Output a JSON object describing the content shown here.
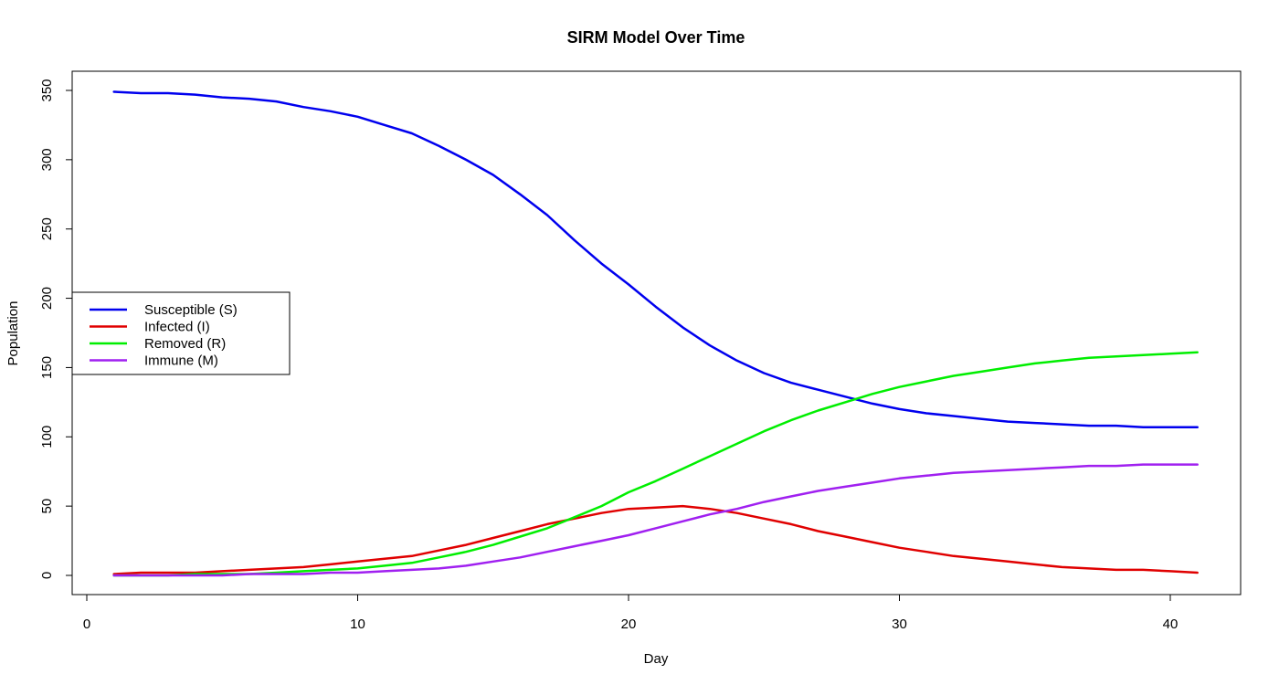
{
  "chart_data": {
    "type": "line",
    "title": "SIRM Model Over Time",
    "xlabel": "Day",
    "ylabel": "Population",
    "xlim": [
      0,
      42
    ],
    "ylim": [
      0,
      355
    ],
    "x_ticks": [
      0,
      10,
      20,
      30,
      40
    ],
    "y_ticks": [
      0,
      50,
      100,
      150,
      200,
      250,
      300,
      350
    ],
    "grid": false,
    "legend_position": "left",
    "x": [
      1,
      2,
      3,
      4,
      5,
      6,
      7,
      8,
      9,
      10,
      11,
      12,
      13,
      14,
      15,
      16,
      17,
      18,
      19,
      20,
      21,
      22,
      23,
      24,
      25,
      26,
      27,
      28,
      29,
      30,
      31,
      32,
      33,
      34,
      35,
      36,
      37,
      38,
      39,
      40,
      41
    ],
    "series": [
      {
        "name": "Susceptible (S)",
        "color": "#0000ee",
        "values": [
          349,
          348,
          348,
          347,
          345,
          344,
          342,
          338,
          335,
          331,
          325,
          319,
          310,
          300,
          289,
          275,
          260,
          242,
          225,
          210,
          194,
          179,
          166,
          155,
          146,
          139,
          134,
          129,
          124,
          120,
          117,
          115,
          113,
          111,
          110,
          109,
          108,
          108,
          107,
          107,
          107
        ]
      },
      {
        "name": "Infected (I)",
        "color": "#e00000",
        "values": [
          1,
          2,
          2,
          2,
          3,
          4,
          5,
          6,
          8,
          10,
          12,
          14,
          18,
          22,
          27,
          32,
          37,
          41,
          45,
          48,
          49,
          50,
          48,
          45,
          41,
          37,
          32,
          28,
          24,
          20,
          17,
          14,
          12,
          10,
          8,
          6,
          5,
          4,
          4,
          3,
          2
        ]
      },
      {
        "name": "Removed (R)",
        "color": "#00ee00",
        "values": [
          0,
          0,
          0,
          1,
          1,
          1,
          2,
          3,
          4,
          5,
          7,
          9,
          13,
          17,
          22,
          28,
          34,
          42,
          50,
          60,
          68,
          77,
          86,
          95,
          104,
          112,
          119,
          125,
          131,
          136,
          140,
          144,
          147,
          150,
          153,
          155,
          157,
          158,
          159,
          160,
          161
        ]
      },
      {
        "name": "Immune (M)",
        "color": "#a020f0",
        "values": [
          0,
          0,
          0,
          0,
          0,
          1,
          1,
          1,
          2,
          2,
          3,
          4,
          5,
          7,
          10,
          13,
          17,
          21,
          25,
          29,
          34,
          39,
          44,
          48,
          53,
          57,
          61,
          64,
          67,
          70,
          72,
          74,
          75,
          76,
          77,
          78,
          79,
          79,
          80,
          80,
          80
        ]
      }
    ]
  }
}
